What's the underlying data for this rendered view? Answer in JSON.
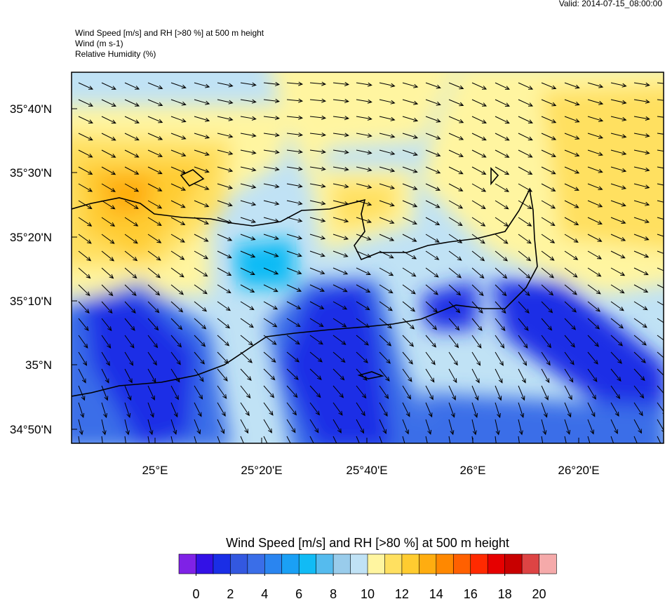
{
  "valid": "Valid: 2014-07-15_08:00:00",
  "titles": [
    "Wind Speed [m/s] and RH [>80 %] at 500 m height",
    "Wind   (m s-1)",
    "Relative Humidity   (%)"
  ],
  "map": {
    "lat_labels": [
      "35°40'N",
      "35°30'N",
      "35°20'N",
      "35°10'N",
      "35°N",
      "34°50'N"
    ],
    "lon_labels": [
      "25°E",
      "25°20'E",
      "25°40'E",
      "26°E",
      "26°20'E"
    ]
  },
  "colorbar": {
    "title": "Wind Speed [m/s] and RH [>80 %] at 500 m height",
    "colors": [
      "#7f22e6",
      "#3311e6",
      "#1a2ee6",
      "#3358e0",
      "#3a6ee8",
      "#2a85f0",
      "#1aa0f5",
      "#11bbf5",
      "#55bbee",
      "#99cceb",
      "#c0e2f5",
      "#fff5a0",
      "#ffe060",
      "#ffcc30",
      "#ffad10",
      "#ff8800",
      "#ff6000",
      "#ff2a00",
      "#e60000",
      "#c80000",
      "#dd4444",
      "#f5aaaa"
    ],
    "limits": [
      -1,
      21
    ],
    "ticks": [
      0,
      2,
      4,
      6,
      8,
      10,
      12,
      14,
      16,
      18,
      20
    ]
  }
}
